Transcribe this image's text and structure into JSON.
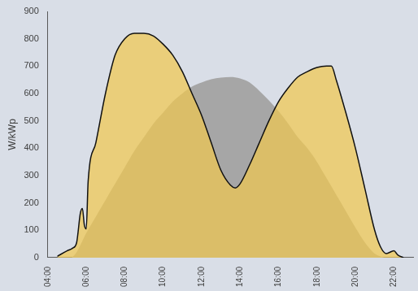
{
  "chart_data": {
    "type": "area",
    "y_label": "W/kWp",
    "xlim": [
      4,
      23
    ],
    "xticks": [
      {
        "value": 4,
        "label": "04:00"
      },
      {
        "value": 6,
        "label": "06:00"
      },
      {
        "value": 8,
        "label": "08:00"
      },
      {
        "value": 10,
        "label": "10:00"
      },
      {
        "value": 12,
        "label": "12:00"
      },
      {
        "value": 14,
        "label": "14:00"
      },
      {
        "value": 16,
        "label": "16:00"
      },
      {
        "value": 18,
        "label": "18:00"
      },
      {
        "value": 20,
        "label": "20:00"
      },
      {
        "value": 22,
        "label": "22:00"
      }
    ],
    "ylim": [
      0,
      900
    ],
    "yticks": [
      0,
      100,
      200,
      300,
      400,
      500,
      600,
      700,
      800,
      900
    ],
    "grid": false,
    "series": [
      {
        "color": "#a6a6a6",
        "line_style": "none",
        "x": [
          5.25,
          5.5,
          6.0,
          6.5,
          7.0,
          7.5,
          8.0,
          8.5,
          9.0,
          9.5,
          10.0,
          10.5,
          11.0,
          11.5,
          12.0,
          12.5,
          13.0,
          13.5,
          14.0,
          14.5,
          15.0,
          15.5,
          16.0,
          16.5,
          17.0,
          17.5,
          18.0,
          18.5,
          19.0,
          19.5,
          20.0,
          20.5,
          21.0,
          21.5
        ],
        "values": [
          0,
          20,
          90,
          150,
          210,
          270,
          330,
          390,
          440,
          490,
          530,
          570,
          600,
          625,
          640,
          652,
          658,
          660,
          655,
          640,
          610,
          575,
          535,
          490,
          440,
          400,
          350,
          290,
          230,
          170,
          110,
          55,
          15,
          0
        ]
      },
      {
        "color": "#f0c850",
        "line_style": "solid",
        "x": [
          4.5,
          5.0,
          5.3,
          5.5,
          5.7,
          5.8,
          5.9,
          6.0,
          6.1,
          6.5,
          7.0,
          7.5,
          8.0,
          8.5,
          9.0,
          9.5,
          10.0,
          10.5,
          11.0,
          11.5,
          12.0,
          12.5,
          13.0,
          13.5,
          13.75,
          14.0,
          14.5,
          15.0,
          15.5,
          16.0,
          16.5,
          17.0,
          17.5,
          18.0,
          18.5,
          18.75,
          19.0,
          19.5,
          20.0,
          20.5,
          21.0,
          21.3,
          21.6,
          22.0,
          22.2,
          22.5
        ],
        "values": [
          5,
          25,
          35,
          55,
          165,
          180,
          120,
          105,
          280,
          420,
          600,
          740,
          800,
          820,
          820,
          810,
          780,
          740,
          680,
          600,
          520,
          420,
          320,
          265,
          255,
          270,
          340,
          420,
          500,
          570,
          620,
          660,
          680,
          695,
          700,
          700,
          650,
          530,
          400,
          250,
          100,
          40,
          15,
          25,
          10,
          0
        ]
      }
    ]
  }
}
